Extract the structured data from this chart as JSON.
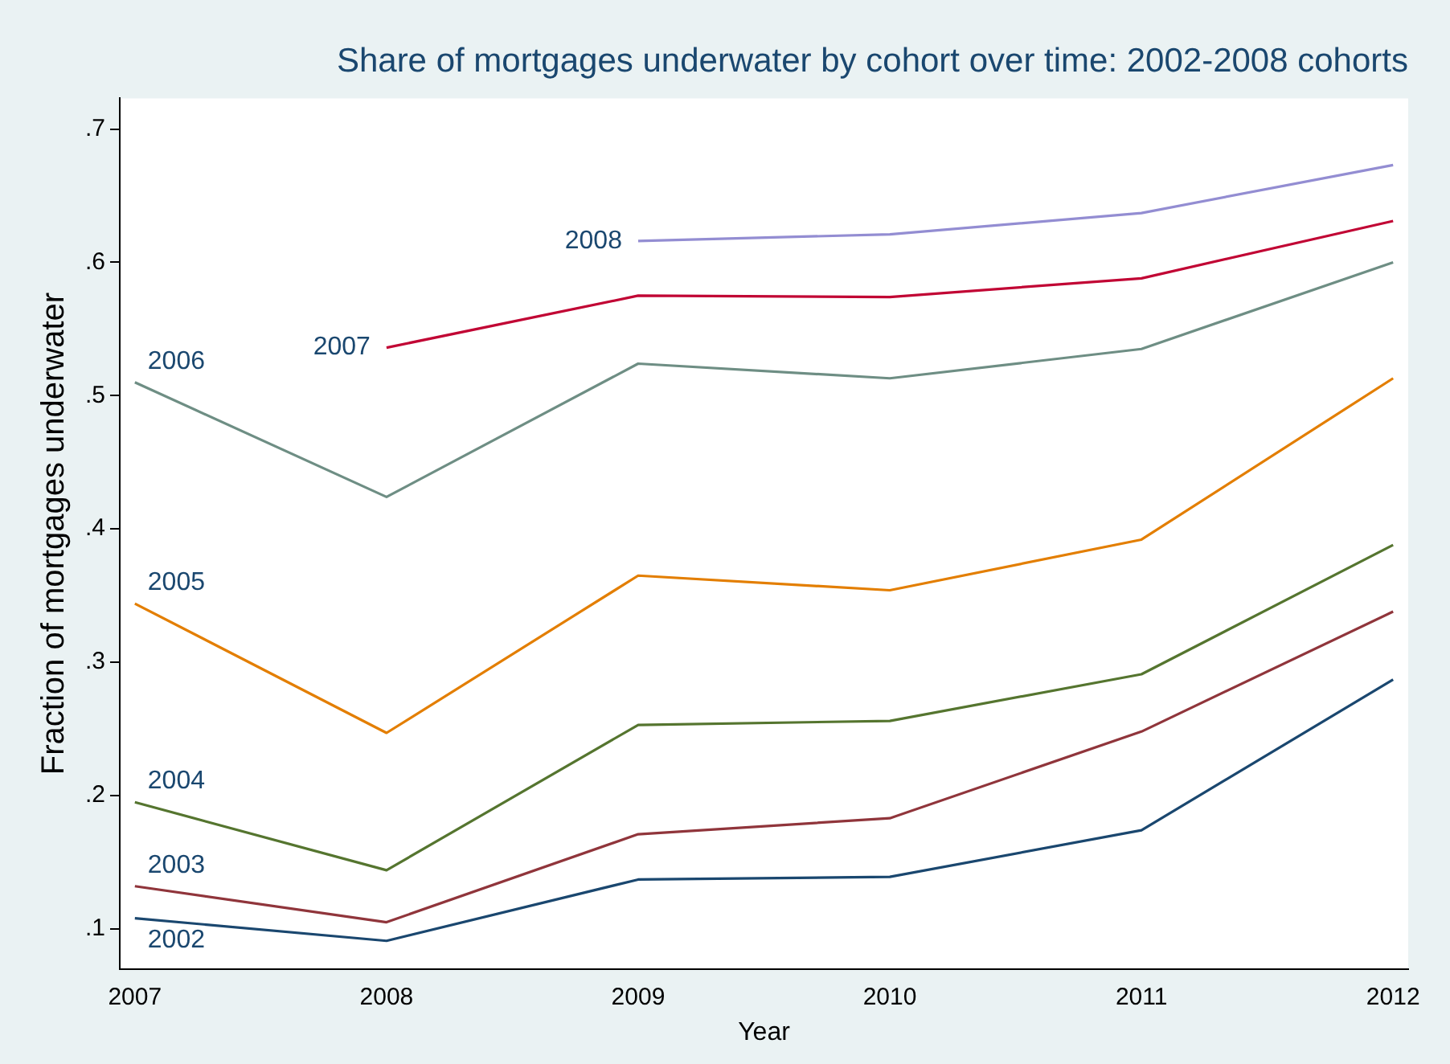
{
  "chart_data": {
    "type": "line",
    "title": "Share of mortgages underwater by cohort over time: 2002-2008 cohorts",
    "xlabel": "Year",
    "ylabel": "Fraction of mortgages underwater",
    "xlim": [
      2006.94,
      2012.06
    ],
    "xticks": [
      2007,
      2008,
      2009,
      2010,
      2011,
      2012
    ],
    "ylim": [
      0.07,
      0.723
    ],
    "yticks": [
      {
        "value": 0.1,
        "label": ".1"
      },
      {
        "value": 0.2,
        "label": ".2"
      },
      {
        "value": 0.3,
        "label": ".3"
      },
      {
        "value": 0.4,
        "label": ".4"
      },
      {
        "value": 0.5,
        "label": ".5"
      },
      {
        "value": 0.6,
        "label": ".6"
      },
      {
        "value": 0.7,
        "label": ".7"
      }
    ],
    "grid": false,
    "legend": false,
    "marker": "none",
    "series": [
      {
        "name": "2002",
        "color": "#1a476f",
        "x": [
          2007,
          2008,
          2009,
          2010,
          2011,
          2012
        ],
        "values": [
          0.108,
          0.091,
          0.137,
          0.139,
          0.174,
          0.287
        ]
      },
      {
        "name": "2003",
        "color": "#90353b",
        "x": [
          2007,
          2008,
          2009,
          2010,
          2011,
          2012
        ],
        "values": [
          0.132,
          0.105,
          0.171,
          0.183,
          0.248,
          0.338
        ]
      },
      {
        "name": "2004",
        "color": "#55752f",
        "x": [
          2007,
          2008,
          2009,
          2010,
          2011,
          2012
        ],
        "values": [
          0.195,
          0.144,
          0.253,
          0.256,
          0.291,
          0.388
        ]
      },
      {
        "name": "2005",
        "color": "#e37e00",
        "x": [
          2007,
          2008,
          2009,
          2010,
          2011,
          2012
        ],
        "values": [
          0.344,
          0.247,
          0.365,
          0.354,
          0.392,
          0.513
        ]
      },
      {
        "name": "2006",
        "color": "#6e8e84",
        "x": [
          2007,
          2008,
          2009,
          2010,
          2011,
          2012
        ],
        "values": [
          0.51,
          0.424,
          0.524,
          0.513,
          0.535,
          0.6
        ]
      },
      {
        "name": "2007",
        "color": "#c10534",
        "x": [
          2008,
          2009,
          2010,
          2011,
          2012
        ],
        "values": [
          0.536,
          0.575,
          0.574,
          0.588,
          0.631
        ]
      },
      {
        "name": "2008",
        "color": "#938dd2",
        "x": [
          2009,
          2010,
          2011,
          2012
        ],
        "values": [
          0.616,
          0.621,
          0.637,
          0.673
        ]
      }
    ]
  }
}
